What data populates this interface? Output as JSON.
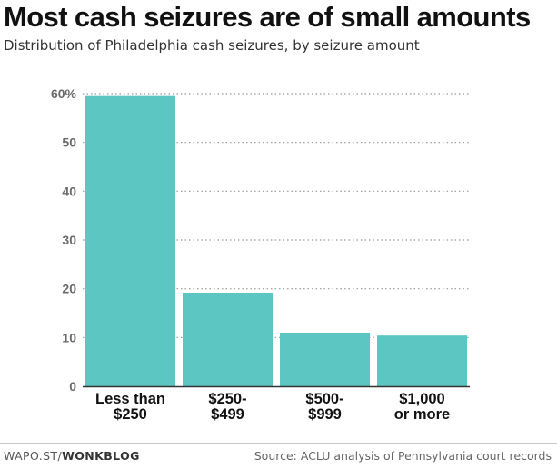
{
  "title": "Most cash seizures are of small amounts",
  "subtitle": "Distribution of Philadelphia cash seizures, by seizure amount",
  "footer": {
    "credit_prefix": "WAPO.ST/",
    "credit_brand": "WONKBLOG",
    "source": "Source: ACLU analysis of Pennsylvania court records"
  },
  "colors": {
    "bar": "#5bc6c2",
    "grid": "#999999",
    "axis_text": "#6b6b6b",
    "category_text": "#111111"
  },
  "chart_data": {
    "type": "bar",
    "title": "Most cash seizures are of small amounts",
    "subtitle": "Distribution of Philadelphia cash seizures, by seizure amount",
    "xlabel": "",
    "ylabel": "",
    "categories": [
      [
        "Less than",
        "$250"
      ],
      [
        "$250-",
        "$499"
      ],
      [
        "$500-",
        "$999"
      ],
      [
        "$1,000",
        "or more"
      ]
    ],
    "values": [
      59.5,
      19.2,
      11.0,
      10.4
    ],
    "ylim": [
      0,
      60
    ],
    "yticks": [
      0,
      10,
      20,
      30,
      40,
      50,
      60
    ],
    "ytick_labels": [
      "0",
      "10",
      "20",
      "30",
      "40",
      "50",
      "60%"
    ],
    "grid": true,
    "grid_style": "dotted"
  }
}
